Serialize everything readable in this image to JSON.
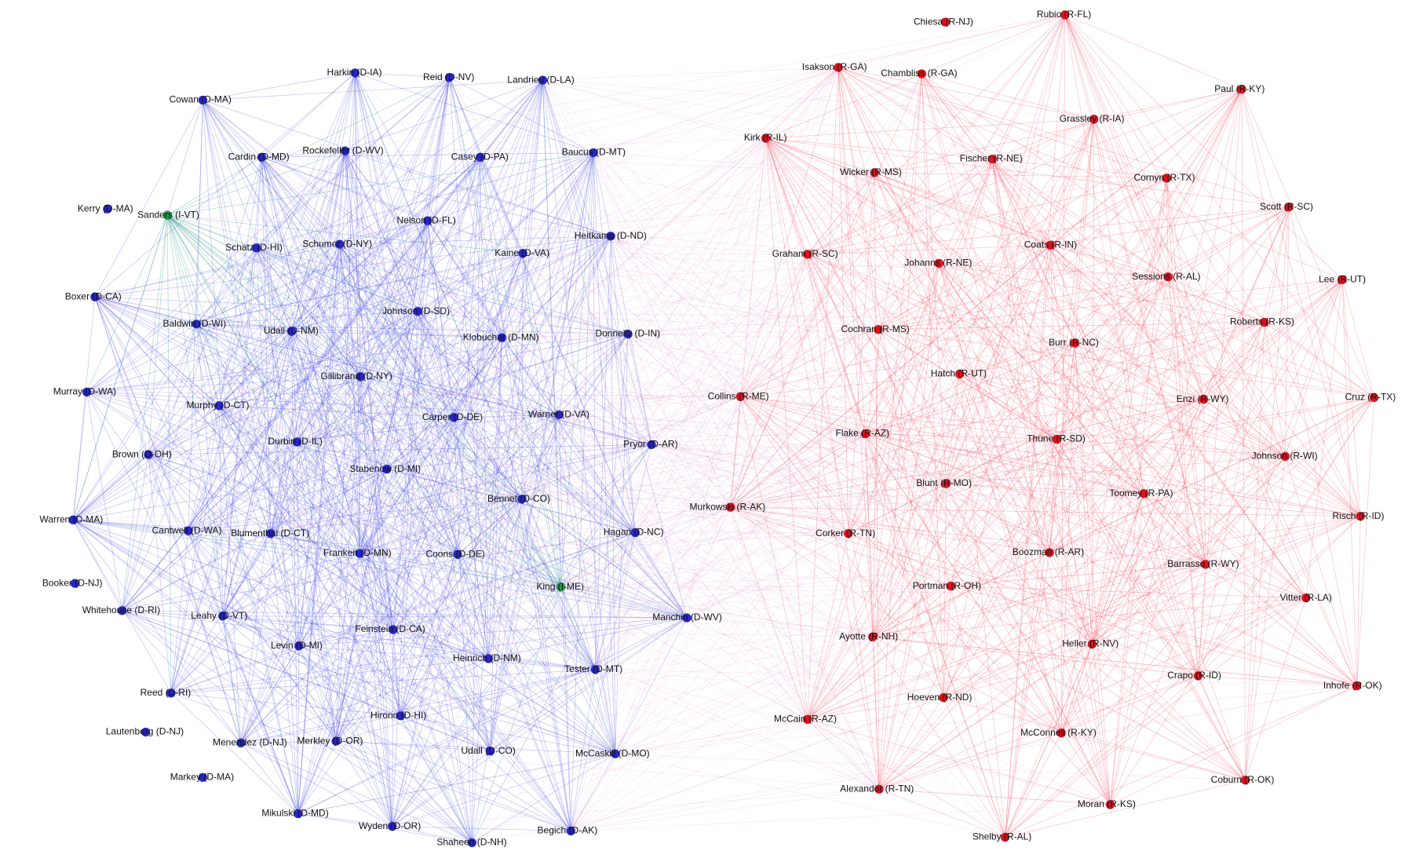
{
  "nodes": [
    {
      "label": "Harkin (D-IA)"
    },
    {
      "label": "Reid (D-NV)"
    },
    {
      "label": "Landrieu (D-LA)"
    },
    {
      "label": "Cowan (D-MA)"
    },
    {
      "label": "Cardin (D-MD)"
    },
    {
      "label": "Rockefeller (D-WV)"
    },
    {
      "label": "Casey (D-PA)"
    },
    {
      "label": "Baucus (D-MT)"
    },
    {
      "label": "Kerry (D-MA)"
    },
    {
      "label": "Sanders (I-VT)"
    },
    {
      "label": "Nelson (D-FL)"
    },
    {
      "label": "Heitkamp (D-ND)"
    },
    {
      "label": "Schatz (D-HI)"
    },
    {
      "label": "Schumer (D-NY)"
    },
    {
      "label": "Kaine (D-VA)"
    },
    {
      "label": "Boxer (D-CA)"
    },
    {
      "label": "Johnson (D-SD)"
    },
    {
      "label": "Baldwin (D-WI)"
    },
    {
      "label": "Udall (D-NM)"
    },
    {
      "label": "Klobuchar (D-MN)"
    },
    {
      "label": "Donnelly (D-IN)"
    },
    {
      "label": "Gillibrand (D-NY)"
    },
    {
      "label": "Murray (D-WA)"
    },
    {
      "label": "Murphy (D-CT)"
    },
    {
      "label": "Carper (D-DE)"
    },
    {
      "label": "Warner (D-VA)"
    },
    {
      "label": "Brown (D-OH)"
    },
    {
      "label": "Durbin (D-IL)"
    },
    {
      "label": "Pryor (D-AR)"
    },
    {
      "label": "Stabenow (D-MI)"
    },
    {
      "label": "Bennet (D-CO)"
    },
    {
      "label": "Warren (D-MA)"
    },
    {
      "label": "Cantwell (D-WA)"
    },
    {
      "label": "Blumenthal (D-CT)"
    },
    {
      "label": "Hagan (D-NC)"
    },
    {
      "label": "Franken (D-MN)"
    },
    {
      "label": "Coons (D-DE)"
    },
    {
      "label": "King (I-ME)"
    },
    {
      "label": "Booker (D-NJ)"
    },
    {
      "label": "Whitehouse (D-RI)"
    },
    {
      "label": "Leahy (D-VT)"
    },
    {
      "label": "Manchin (D-WV)"
    },
    {
      "label": "Levin (D-MI)"
    },
    {
      "label": "Feinstein (D-CA)"
    },
    {
      "label": "Heinrich (D-NM)"
    },
    {
      "label": "Tester (D-MT)"
    },
    {
      "label": "Reed (D-RI)"
    },
    {
      "label": "Hirono (D-HI)"
    },
    {
      "label": "Lautenberg (D-NJ)"
    },
    {
      "label": "Menendez (D-NJ)"
    },
    {
      "label": "Merkley (D-OR)"
    },
    {
      "label": "Udall (D-CO)"
    },
    {
      "label": "McCaskill (D-MO)"
    },
    {
      "label": "Markey (D-MA)"
    },
    {
      "label": "Mikulski (D-MD)"
    },
    {
      "label": "Wyden (D-OR)"
    },
    {
      "label": "Shaheen (D-NH)"
    },
    {
      "label": "Begich (D-AK)"
    },
    {
      "label": "Chiesa (R-NJ)"
    },
    {
      "label": "Rubio (R-FL)"
    },
    {
      "label": "Isakson (R-GA)"
    },
    {
      "label": "Chambliss (R-GA)"
    },
    {
      "label": "Paul (R-KY)"
    },
    {
      "label": "Grassley (R-IA)"
    },
    {
      "label": "Kirk (R-IL)"
    },
    {
      "label": "Fischer (R-NE)"
    },
    {
      "label": "Wicker (R-MS)"
    },
    {
      "label": "Cornyn (R-TX)"
    },
    {
      "label": "Scott (R-SC)"
    },
    {
      "label": "Graham (R-SC)"
    },
    {
      "label": "Johanns (R-NE)"
    },
    {
      "label": "Coats (R-IN)"
    },
    {
      "label": "Sessions (R-AL)"
    },
    {
      "label": "Lee (R-UT)"
    },
    {
      "label": "Cochran (R-MS)"
    },
    {
      "label": "Roberts (R-KS)"
    },
    {
      "label": "Burr (R-NC)"
    },
    {
      "label": "Hatch (R-UT)"
    },
    {
      "label": "Enzi (R-WY)"
    },
    {
      "label": "Cruz (R-TX)"
    },
    {
      "label": "Collins (R-ME)"
    },
    {
      "label": "Flake (R-AZ)"
    },
    {
      "label": "Thune (R-SD)"
    },
    {
      "label": "Johnson (R-WI)"
    },
    {
      "label": "Blunt (R-MO)"
    },
    {
      "label": "Toomey (R-PA)"
    },
    {
      "label": "Murkowski (R-AK)"
    },
    {
      "label": "Corker (R-TN)"
    },
    {
      "label": "Risch (R-ID)"
    },
    {
      "label": "Boozman (R-AR)"
    },
    {
      "label": "Barrasso (R-WY)"
    },
    {
      "label": "Portman (R-OH)"
    },
    {
      "label": "Vitter (R-LA)"
    },
    {
      "label": "Ayotte (R-NH)"
    },
    {
      "label": "Heller (R-NV)"
    },
    {
      "label": "Crapo (R-ID)"
    },
    {
      "label": "Hoeven (R-ND)"
    },
    {
      "label": "Inhofe (R-OK)"
    },
    {
      "label": "McCain (R-AZ)"
    },
    {
      "label": "McConnell (R-KY)"
    },
    {
      "label": "Coburn (R-OK)"
    },
    {
      "label": "Alexander (R-TN)"
    },
    {
      "label": "Moran (R-KS)"
    },
    {
      "label": "Shelby (R-AL)"
    }
  ]
}
